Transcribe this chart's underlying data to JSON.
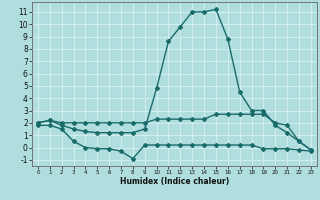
{
  "title": "",
  "xlabel": "Humidex (Indice chaleur)",
  "xlim": [
    -0.5,
    23.5
  ],
  "ylim": [
    -1.5,
    11.8
  ],
  "yticks": [
    -1,
    0,
    1,
    2,
    3,
    4,
    5,
    6,
    7,
    8,
    9,
    10,
    11
  ],
  "xticks": [
    0,
    1,
    2,
    3,
    4,
    5,
    6,
    7,
    8,
    9,
    10,
    11,
    12,
    13,
    14,
    15,
    16,
    17,
    18,
    19,
    20,
    21,
    22,
    23
  ],
  "background_color": "#b0dede",
  "grid_color": "#d8f0f0",
  "line_color": "#1a6b6b",
  "series": [
    {
      "x": [
        0,
        1,
        2,
        3,
        4,
        5,
        6,
        7,
        8,
        9,
        10,
        11,
        12,
        13,
        14,
        15,
        16,
        17,
        18,
        19,
        20,
        21,
        22,
        23
      ],
      "y": [
        2.0,
        2.2,
        1.8,
        1.5,
        1.3,
        1.2,
        1.2,
        1.2,
        1.2,
        1.5,
        4.8,
        8.6,
        9.8,
        11.0,
        11.0,
        11.2,
        8.8,
        4.5,
        3.0,
        3.0,
        1.8,
        1.2,
        0.5,
        -0.2
      ],
      "marker": "D",
      "markersize": 2,
      "linewidth": 1.0
    },
    {
      "x": [
        0,
        1,
        2,
        3,
        4,
        5,
        6,
        7,
        8,
        9,
        10,
        11,
        12,
        13,
        14,
        15,
        16,
        17,
        18,
        19,
        20,
        21,
        22,
        23
      ],
      "y": [
        2.0,
        2.2,
        2.0,
        2.0,
        2.0,
        2.0,
        2.0,
        2.0,
        2.0,
        2.0,
        2.3,
        2.3,
        2.3,
        2.3,
        2.3,
        2.7,
        2.7,
        2.7,
        2.7,
        2.7,
        2.0,
        1.8,
        0.5,
        -0.2
      ],
      "marker": "D",
      "markersize": 2,
      "linewidth": 1.0
    },
    {
      "x": [
        0,
        1,
        2,
        3,
        4,
        5,
        6,
        7,
        8,
        9,
        10,
        11,
        12,
        13,
        14,
        15,
        16,
        17,
        18,
        19,
        20,
        21,
        22,
        23
      ],
      "y": [
        1.8,
        1.8,
        1.5,
        0.5,
        0.0,
        -0.1,
        -0.1,
        -0.3,
        -0.9,
        0.2,
        0.2,
        0.2,
        0.2,
        0.2,
        0.2,
        0.2,
        0.2,
        0.2,
        0.2,
        -0.1,
        -0.1,
        -0.1,
        -0.2,
        -0.3
      ],
      "marker": "D",
      "markersize": 2,
      "linewidth": 1.0
    }
  ]
}
